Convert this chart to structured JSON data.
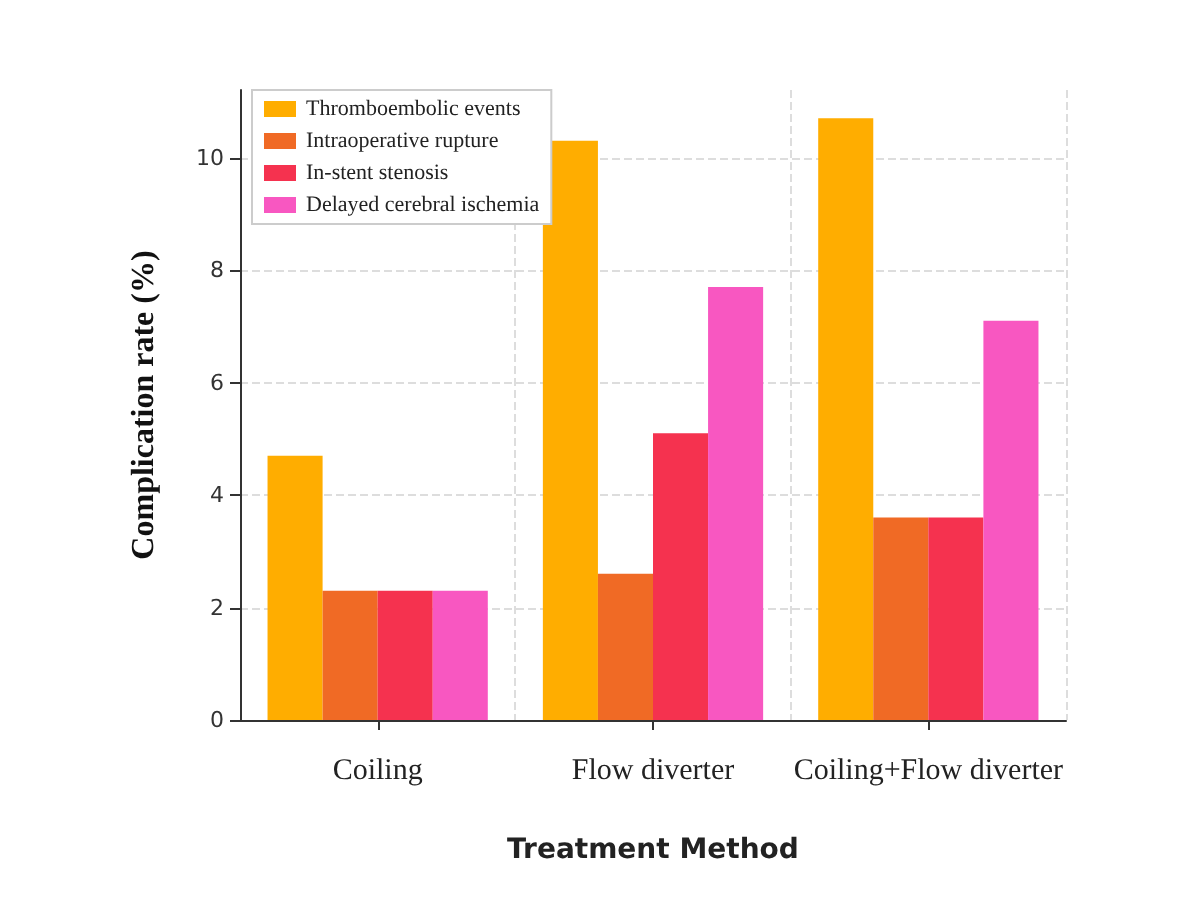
{
  "chart_data": {
    "type": "bar",
    "xlabel": "Treatment Method",
    "ylabel": "Complication rate (%)",
    "categories": [
      "Coiling",
      "Flow diverter",
      "Coiling+Flow diverter"
    ],
    "series": [
      {
        "name": "Thromboembolic events",
        "color": "#ffad00",
        "values": [
          4.7,
          10.3,
          10.7
        ]
      },
      {
        "name": "Intraoperative rupture",
        "color": "#f06a25",
        "values": [
          2.3,
          2.6,
          3.6
        ]
      },
      {
        "name": "In-stent stenosis",
        "color": "#f5324f",
        "values": [
          2.3,
          5.1,
          3.6
        ]
      },
      {
        "name": "Delayed cerebral ischemia",
        "color": "#f857c1",
        "values": [
          2.3,
          7.7,
          7.1
        ]
      }
    ],
    "ylim": [
      0,
      11.2
    ],
    "yticks": [
      0,
      2,
      4,
      6,
      8,
      10
    ],
    "grid": true,
    "legend": "top left"
  }
}
